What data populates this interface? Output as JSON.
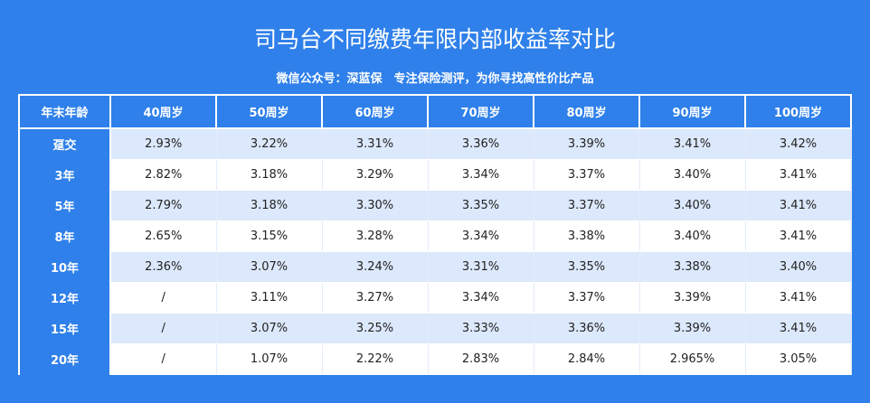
{
  "header": {
    "title": "司马台不同缴费年限内部收益率对比",
    "subtitle": "微信公众号：深蓝保　专注保险测评，为你寻找高性价比产品"
  },
  "table": {
    "columns": [
      "年末年龄",
      "40周岁",
      "50周岁",
      "60周岁",
      "70周岁",
      "80周岁",
      "90周岁",
      "100周岁"
    ],
    "rows": [
      [
        "趸交",
        "2.93%",
        "3.22%",
        "3.31%",
        "3.36%",
        "3.39%",
        "3.41%",
        "3.42%"
      ],
      [
        "3年",
        "2.82%",
        "3.18%",
        "3.29%",
        "3.34%",
        "3.37%",
        "3.40%",
        "3.41%"
      ],
      [
        "5年",
        "2.79%",
        "3.18%",
        "3.30%",
        "3.35%",
        "3.37%",
        "3.40%",
        "3.41%"
      ],
      [
        "8年",
        "2.65%",
        "3.15%",
        "3.28%",
        "3.34%",
        "3.38%",
        "3.40%",
        "3.41%"
      ],
      [
        "10年",
        "2.36%",
        "3.07%",
        "3.24%",
        "3.31%",
        "3.35%",
        "3.38%",
        "3.40%"
      ],
      [
        "12年",
        "/",
        "3.11%",
        "3.27%",
        "3.34%",
        "3.37%",
        "3.39%",
        "3.41%"
      ],
      [
        "15年",
        "/",
        "3.07%",
        "3.25%",
        "3.33%",
        "3.36%",
        "3.39%",
        "3.41%"
      ],
      [
        "20年",
        "/",
        "1.07%",
        "2.22%",
        "2.83%",
        "2.84%",
        "2.965%",
        "3.05%"
      ]
    ]
  }
}
